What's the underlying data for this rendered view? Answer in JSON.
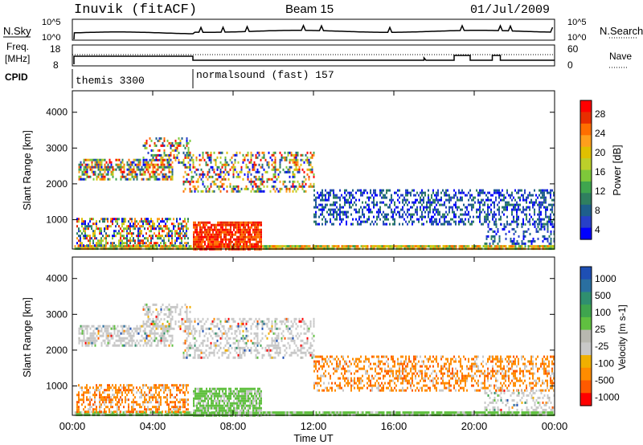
{
  "header": {
    "station": "Inuvik (fitACF)",
    "beam": "Beam 15",
    "date": "01/Jul/2009"
  },
  "status_panels": {
    "nsky_label": "N.Sky",
    "nsky_ticks": [
      "10^5",
      "10^0"
    ],
    "nsearch_label": "N.Search",
    "nsearch_ticks": [
      "10^5",
      "10^0"
    ],
    "freq_label_line1": "Freq.",
    "freq_label_line2": "[MHz]",
    "freq_ticks": [
      "18",
      "8"
    ],
    "nave_label": "Nave",
    "nave_ticks": [
      "60",
      "0"
    ],
    "cpid_label": "CPID",
    "cpid_segments": [
      {
        "label": "themis 3300",
        "start_hour": 0,
        "end_hour": 6
      },
      {
        "label": "normalsound (fast) 157",
        "start_hour": 6,
        "end_hour": 24
      }
    ]
  },
  "chart_data": [
    {
      "type": "heatmap",
      "title": "",
      "xlabel": "Time UT",
      "ylabel": "Slant Range [km]",
      "xlim": [
        0,
        24
      ],
      "ylim": [
        180,
        4600
      ],
      "x_ticks": [
        "00:00",
        "04:00",
        "08:00",
        "12:00",
        "16:00",
        "20:00",
        "00:00"
      ],
      "y_ticks": [
        1000,
        2000,
        3000,
        4000
      ],
      "colorbar": {
        "label": "Power [dB]",
        "ticks": [
          "28",
          "24",
          "20",
          "16",
          "12",
          "8",
          "4"
        ],
        "colors": [
          "#ff0000",
          "#e82e00",
          "#ff6e00",
          "#ff9f1c",
          "#e0c000",
          "#bccf2a",
          "#7ec83a",
          "#3fa54e",
          "#2f7f5f",
          "#1e5f8c",
          "#2740c8",
          "#0000ff"
        ]
      },
      "regions": [
        {
          "t0": 0.1,
          "t1": 24,
          "r0": 190,
          "r1": 290,
          "level": "mid",
          "density": 0.9
        },
        {
          "t0": 6.0,
          "t1": 9.4,
          "r0": 200,
          "r1": 950,
          "level": "high",
          "density": 0.85
        },
        {
          "t0": 0.2,
          "t1": 5.8,
          "r0": 250,
          "r1": 1050,
          "level": "mixed",
          "density": 0.55
        },
        {
          "t0": 0.3,
          "t1": 5.0,
          "r0": 2150,
          "r1": 2700,
          "level": "mixed",
          "density": 0.6
        },
        {
          "t0": 3.5,
          "t1": 5.9,
          "r0": 2600,
          "r1": 3300,
          "level": "mixed",
          "density": 0.4
        },
        {
          "t0": 5.5,
          "t1": 12.0,
          "r0": 1800,
          "r1": 2900,
          "level": "mixed",
          "density": 0.35
        },
        {
          "t0": 12.0,
          "t1": 24.0,
          "r0": 900,
          "r1": 1850,
          "level": "low",
          "density": 0.45
        },
        {
          "t0": 20.5,
          "t1": 24.0,
          "r0": 300,
          "r1": 900,
          "level": "low",
          "density": 0.3
        }
      ]
    },
    {
      "type": "heatmap",
      "title": "",
      "xlabel": "Time UT",
      "ylabel": "Slant Range [km]",
      "xlim": [
        0,
        24
      ],
      "ylim": [
        180,
        4600
      ],
      "x_ticks": [
        "00:00",
        "04:00",
        "08:00",
        "12:00",
        "16:00",
        "20:00",
        "00:00"
      ],
      "y_ticks": [
        1000,
        2000,
        3000,
        4000
      ],
      "colorbar": {
        "label": "Velocity [m s-1]",
        "ticks": [
          "1000",
          "500",
          "100",
          "25",
          "-25",
          "-100",
          "-500",
          "-1000"
        ],
        "colors": [
          "#1e4fb4",
          "#2a6fa0",
          "#2f8f6f",
          "#3fa54e",
          "#60c040",
          "#b8b8b0",
          "#c8c8c8",
          "#f0b000",
          "#ff8c00",
          "#ff5a00",
          "#ff0000"
        ]
      },
      "regions": [
        {
          "t0": 0.1,
          "t1": 24,
          "r0": 190,
          "r1": 290,
          "level": "ground",
          "density": 0.9
        },
        {
          "t0": 6.0,
          "t1": 9.4,
          "r0": 200,
          "r1": 950,
          "level": "ground",
          "density": 0.85
        },
        {
          "t0": 0.2,
          "t1": 5.8,
          "r0": 250,
          "r1": 1050,
          "level": "neg",
          "density": 0.5
        },
        {
          "t0": 0.3,
          "t1": 5.0,
          "r0": 2150,
          "r1": 2700,
          "level": "grey",
          "density": 0.6
        },
        {
          "t0": 3.5,
          "t1": 5.9,
          "r0": 2600,
          "r1": 3300,
          "level": "grey",
          "density": 0.4
        },
        {
          "t0": 5.5,
          "t1": 12.0,
          "r0": 1800,
          "r1": 2900,
          "level": "grey",
          "density": 0.35
        },
        {
          "t0": 12.0,
          "t1": 24.0,
          "r0": 900,
          "r1": 1850,
          "level": "neg",
          "density": 0.45
        },
        {
          "t0": 20.5,
          "t1": 24.0,
          "r0": 300,
          "r1": 900,
          "level": "grey",
          "density": 0.3
        }
      ]
    }
  ]
}
